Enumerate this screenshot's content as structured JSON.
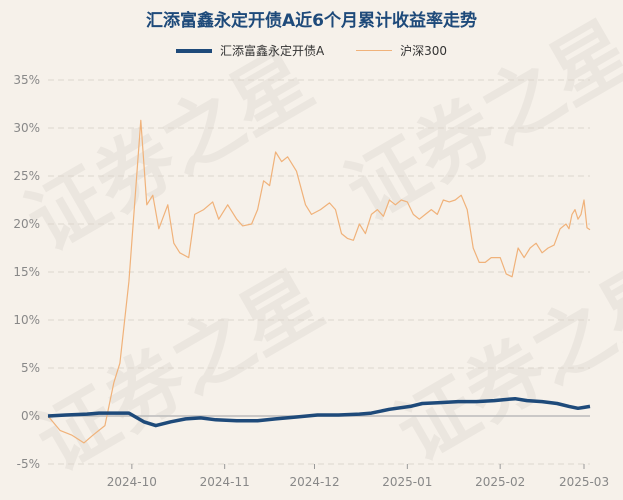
{
  "chart_data": {
    "type": "line",
    "title": "汇添富鑫永定开债A近6个月累计收益率走势",
    "ylim": [
      -5,
      35
    ],
    "yticks": [
      "-5%",
      "0%",
      "5%",
      "10%",
      "15%",
      "20%",
      "25%",
      "30%",
      "35%"
    ],
    "xticks": [
      {
        "label": "2024-10",
        "date": "2024-10-01"
      },
      {
        "label": "2024-11",
        "date": "2024-11-01"
      },
      {
        "label": "2024-12",
        "date": "2024-12-01"
      },
      {
        "label": "2025-01",
        "date": "2025-01-01"
      },
      {
        "label": "2025-02",
        "date": "2025-02-01"
      },
      {
        "label": "2025-03",
        "date": "2025-03-01"
      }
    ],
    "x_range": [
      "2024-09-03",
      "2025-03-03"
    ],
    "grid": true,
    "legend_position": "top",
    "watermark": "证券之星",
    "series": [
      {
        "name": "汇添富鑫永定开债A",
        "color": "#1e4a7a",
        "points": [
          [
            "2024-09-03",
            0.0
          ],
          [
            "2024-09-09",
            0.1
          ],
          [
            "2024-09-16",
            0.2
          ],
          [
            "2024-09-20",
            0.3
          ],
          [
            "2024-09-26",
            0.3
          ],
          [
            "2024-09-30",
            0.3
          ],
          [
            "2024-10-05",
            -0.6
          ],
          [
            "2024-10-09",
            -1.0
          ],
          [
            "2024-10-14",
            -0.6
          ],
          [
            "2024-10-19",
            -0.3
          ],
          [
            "2024-10-24",
            -0.2
          ],
          [
            "2024-10-29",
            -0.4
          ],
          [
            "2024-11-05",
            -0.5
          ],
          [
            "2024-11-12",
            -0.5
          ],
          [
            "2024-11-18",
            -0.3
          ],
          [
            "2024-11-25",
            -0.1
          ],
          [
            "2024-12-02",
            0.1
          ],
          [
            "2024-12-09",
            0.1
          ],
          [
            "2024-12-16",
            0.2
          ],
          [
            "2024-12-20",
            0.3
          ],
          [
            "2024-12-26",
            0.7
          ],
          [
            "2025-01-02",
            1.0
          ],
          [
            "2025-01-06",
            1.3
          ],
          [
            "2025-01-12",
            1.4
          ],
          [
            "2025-01-18",
            1.5
          ],
          [
            "2025-01-24",
            1.5
          ],
          [
            "2025-01-30",
            1.6
          ],
          [
            "2025-02-02",
            1.7
          ],
          [
            "2025-02-06",
            1.8
          ],
          [
            "2025-02-10",
            1.6
          ],
          [
            "2025-02-15",
            1.5
          ],
          [
            "2025-02-20",
            1.3
          ],
          [
            "2025-02-24",
            1.0
          ],
          [
            "2025-02-27",
            0.8
          ],
          [
            "2025-03-01",
            0.9
          ],
          [
            "2025-03-03",
            1.0
          ]
        ]
      },
      {
        "name": "沪深300",
        "color": "#f0b27a",
        "points": [
          [
            "2024-09-03",
            0.0
          ],
          [
            "2024-09-07",
            -1.5
          ],
          [
            "2024-09-11",
            -2.0
          ],
          [
            "2024-09-15",
            -2.8
          ],
          [
            "2024-09-18",
            -2.0
          ],
          [
            "2024-09-22",
            -1.0
          ],
          [
            "2024-09-25",
            3.5
          ],
          [
            "2024-09-27",
            5.5
          ],
          [
            "2024-09-30",
            14.0
          ],
          [
            "2024-10-04",
            30.8
          ],
          [
            "2024-10-06",
            22.0
          ],
          [
            "2024-10-08",
            23.0
          ],
          [
            "2024-10-10",
            19.5
          ],
          [
            "2024-10-13",
            22.0
          ],
          [
            "2024-10-15",
            18.0
          ],
          [
            "2024-10-17",
            17.0
          ],
          [
            "2024-10-20",
            16.5
          ],
          [
            "2024-10-22",
            21.0
          ],
          [
            "2024-10-25",
            21.5
          ],
          [
            "2024-10-28",
            22.3
          ],
          [
            "2024-10-30",
            20.5
          ],
          [
            "2024-11-02",
            22.0
          ],
          [
            "2024-11-05",
            20.5
          ],
          [
            "2024-11-07",
            19.8
          ],
          [
            "2024-11-10",
            20.0
          ],
          [
            "2024-11-12",
            21.5
          ],
          [
            "2024-11-14",
            24.5
          ],
          [
            "2024-11-16",
            24.0
          ],
          [
            "2024-11-18",
            27.5
          ],
          [
            "2024-11-20",
            26.5
          ],
          [
            "2024-11-22",
            27.0
          ],
          [
            "2024-11-25",
            25.5
          ],
          [
            "2024-11-28",
            22.0
          ],
          [
            "2024-11-30",
            21.0
          ],
          [
            "2024-12-03",
            21.5
          ],
          [
            "2024-12-06",
            22.2
          ],
          [
            "2024-12-08",
            21.5
          ],
          [
            "2024-12-10",
            19.0
          ],
          [
            "2024-12-12",
            18.5
          ],
          [
            "2024-12-14",
            18.3
          ],
          [
            "2024-12-16",
            20.0
          ],
          [
            "2024-12-18",
            19.0
          ],
          [
            "2024-12-20",
            21.0
          ],
          [
            "2024-12-22",
            21.5
          ],
          [
            "2024-12-24",
            20.8
          ],
          [
            "2024-12-26",
            22.5
          ],
          [
            "2024-12-28",
            22.0
          ],
          [
            "2024-12-30",
            22.5
          ],
          [
            "2025-01-01",
            22.3
          ],
          [
            "2025-01-03",
            21.0
          ],
          [
            "2025-01-05",
            20.5
          ],
          [
            "2025-01-07",
            21.0
          ],
          [
            "2025-01-09",
            21.5
          ],
          [
            "2025-01-11",
            21.0
          ],
          [
            "2025-01-13",
            22.5
          ],
          [
            "2025-01-15",
            22.3
          ],
          [
            "2025-01-17",
            22.5
          ],
          [
            "2025-01-19",
            23.0
          ],
          [
            "2025-01-21",
            21.5
          ],
          [
            "2025-01-23",
            17.5
          ],
          [
            "2025-01-25",
            16.0
          ],
          [
            "2025-01-27",
            16.0
          ],
          [
            "2025-01-29",
            16.5
          ],
          [
            "2025-02-01",
            16.5
          ],
          [
            "2025-02-03",
            14.8
          ],
          [
            "2025-02-05",
            14.5
          ],
          [
            "2025-02-07",
            17.5
          ],
          [
            "2025-02-09",
            16.5
          ],
          [
            "2025-02-11",
            17.5
          ],
          [
            "2025-02-13",
            18.0
          ],
          [
            "2025-02-15",
            17.0
          ],
          [
            "2025-02-17",
            17.5
          ],
          [
            "2025-02-19",
            17.8
          ],
          [
            "2025-02-21",
            19.5
          ],
          [
            "2025-02-23",
            20.0
          ],
          [
            "2025-02-24",
            19.5
          ],
          [
            "2025-02-25",
            21.0
          ],
          [
            "2025-02-26",
            21.5
          ],
          [
            "2025-02-27",
            20.5
          ],
          [
            "2025-02-28",
            21.0
          ],
          [
            "2025-03-01",
            22.5
          ],
          [
            "2025-03-02",
            19.6
          ],
          [
            "2025-03-03",
            19.4
          ]
        ]
      }
    ]
  }
}
